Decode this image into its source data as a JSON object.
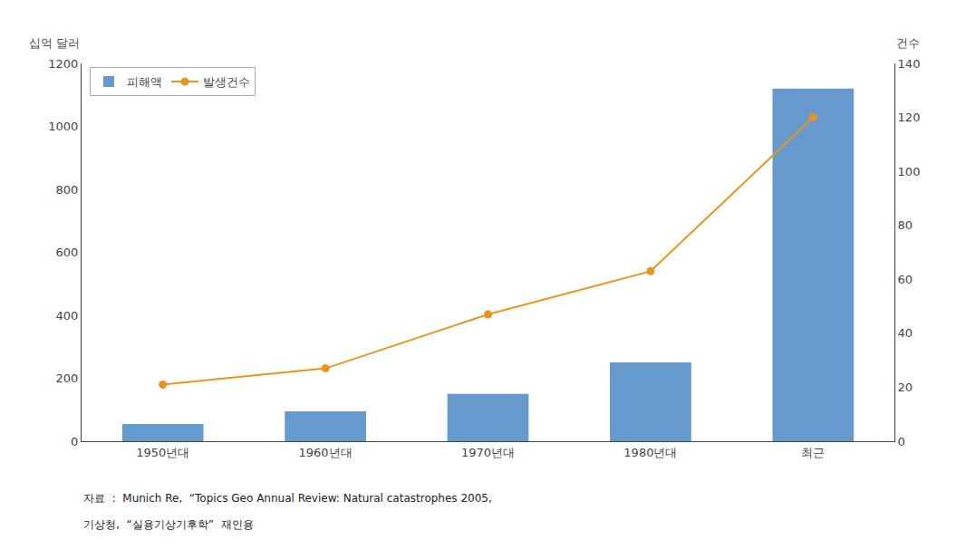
{
  "chart_data": {
    "type": "bar",
    "categories": [
      "1950년대",
      "1960년대",
      "1970년대",
      "1980년대",
      "최근"
    ],
    "series": [
      {
        "name": "피해액",
        "type": "bar",
        "color": "#6699CC",
        "values": [
          55,
          95,
          150,
          250,
          1120
        ]
      },
      {
        "name": "발생건수",
        "type": "line",
        "axis": "y2",
        "color": "#E89520",
        "marker": "circle",
        "values": [
          21,
          27,
          47,
          63,
          120
        ]
      }
    ],
    "ylabel": "십억 달러",
    "y2label": "건수",
    "ylim": [
      0,
      1200
    ],
    "yticks": [
      0,
      200,
      400,
      600,
      800,
      1000,
      1200
    ],
    "y2lim": [
      0,
      140
    ],
    "y2ticks": [
      0,
      20,
      40,
      60,
      80,
      100,
      120,
      140
    ],
    "grid": false,
    "legend": "upper left",
    "annotations": [
      "자료  :  Munich Re,  “Topics Geo Annual Review: Natural catastrophes 2005,",
      "기상청,  “실용기상기후학”  재인용"
    ]
  }
}
